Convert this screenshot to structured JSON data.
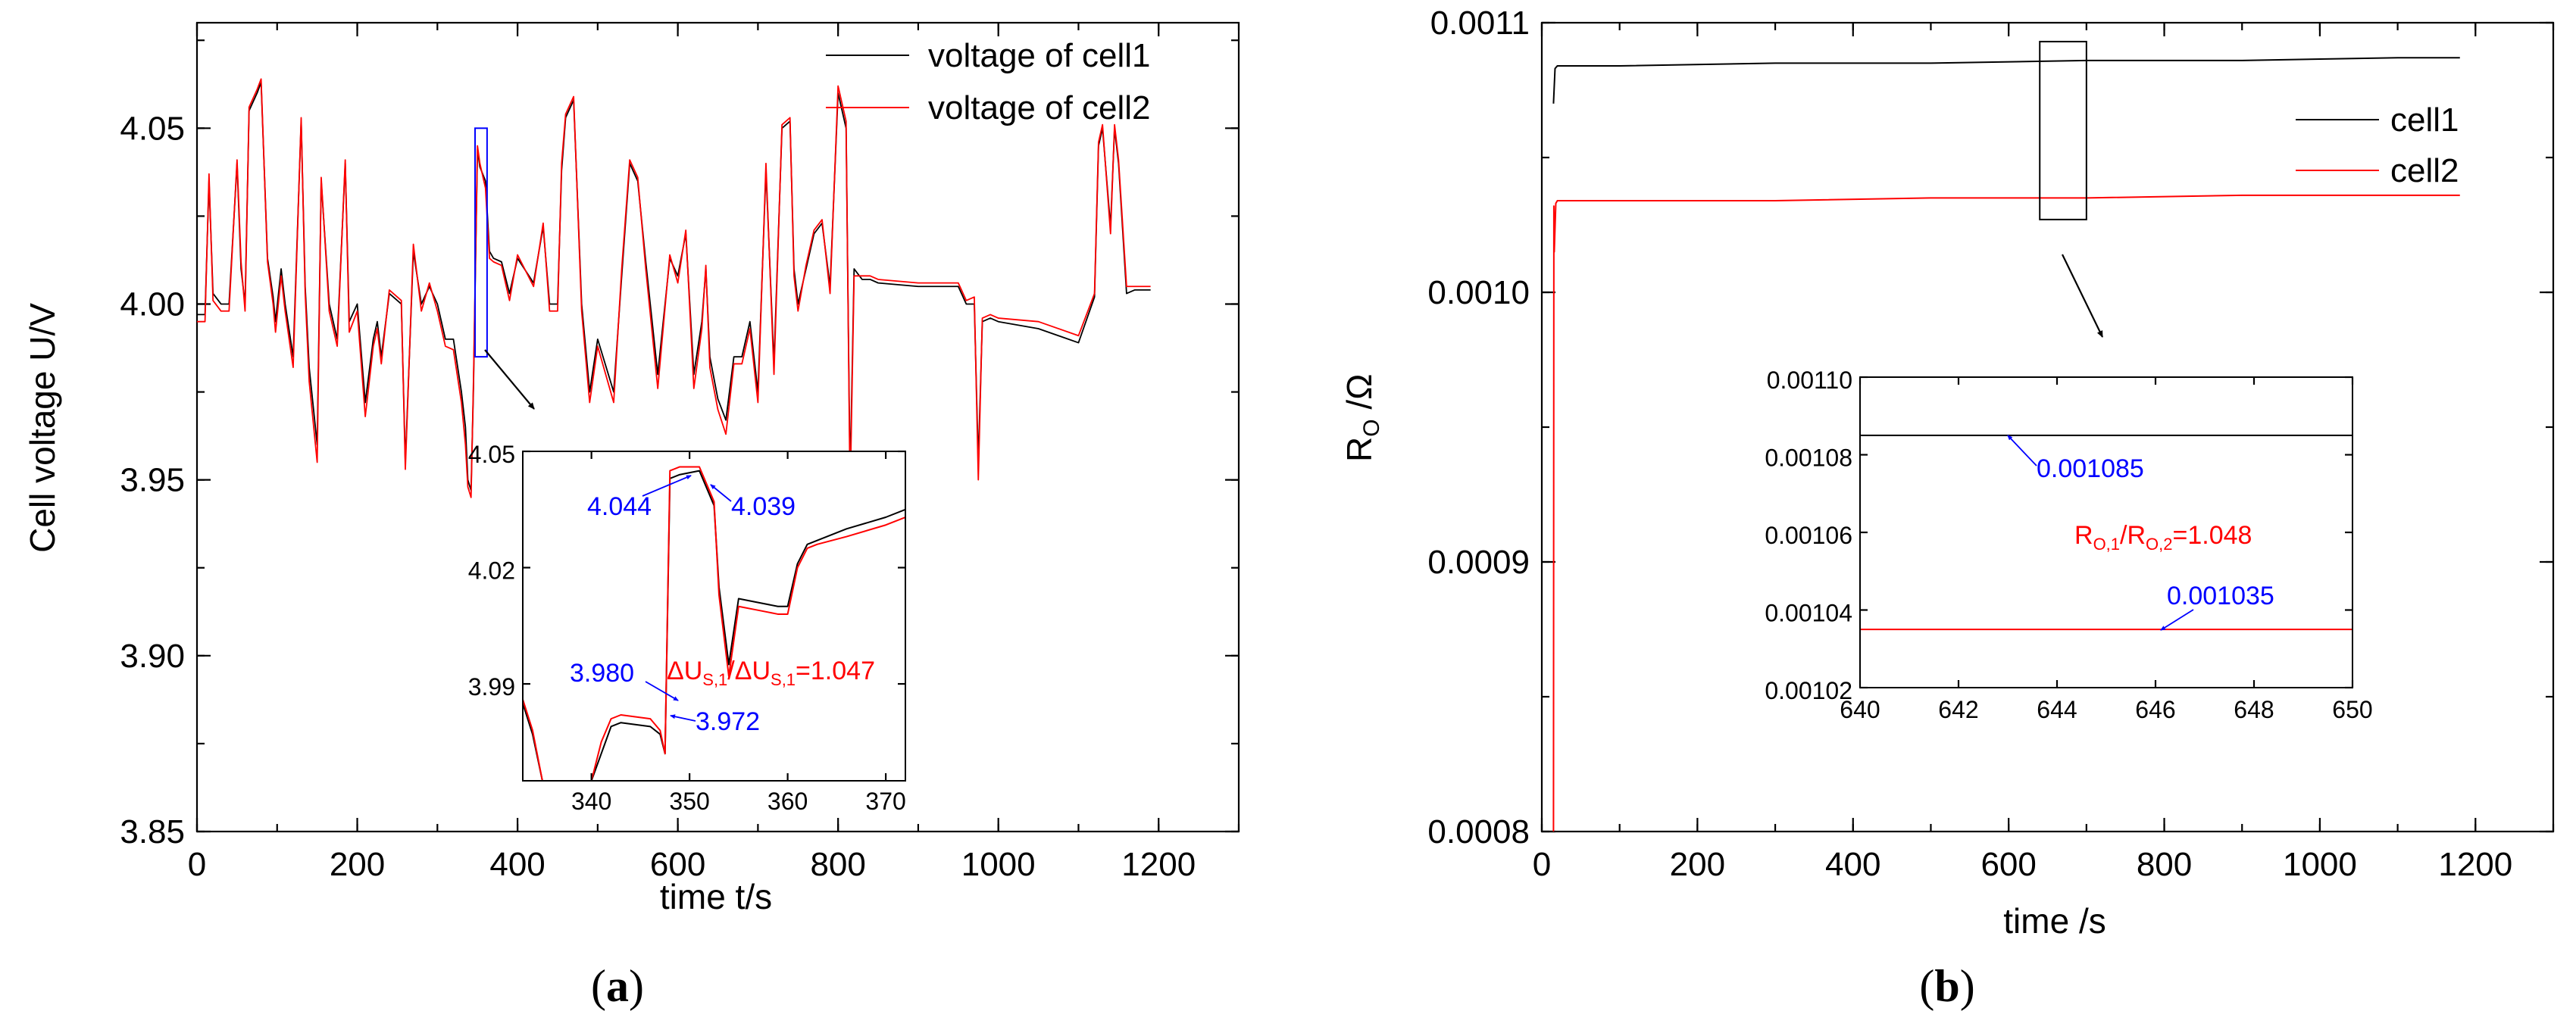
{
  "chart_data": [
    {
      "panel": "a",
      "type": "line",
      "caption": {
        "open": "(",
        "letter": "a",
        "close": ")"
      },
      "xlabel": "time t/s",
      "ylabel": "Cell voltage U/V",
      "xlim": [
        0,
        1300
      ],
      "ylim": [
        3.85,
        4.08
      ],
      "xticks": [
        "0",
        "200",
        "400",
        "600",
        "800",
        "1000",
        "1200"
      ],
      "yticks": [
        "3.85",
        "3.90",
        "3.95",
        "4.00",
        "4.05"
      ],
      "legend": [
        "voltage of cell1",
        "voltage of cell2"
      ],
      "series": [
        {
          "name": "voltage of cell1",
          "color": "#000000",
          "x": [
            0,
            10,
            15,
            20,
            30,
            40,
            50,
            55,
            60,
            65,
            75,
            80,
            88,
            95,
            98,
            105,
            110,
            120,
            130,
            135,
            140,
            150,
            155,
            165,
            175,
            185,
            190,
            200,
            210,
            220,
            225,
            230,
            240,
            255,
            260,
            270,
            280,
            290,
            300,
            310,
            320,
            330,
            335,
            338,
            342,
            345,
            350,
            353,
            360,
            365,
            370,
            380,
            390,
            400,
            420,
            432,
            440,
            450,
            455,
            460,
            470,
            480,
            490,
            500,
            520,
            530,
            540,
            550,
            560,
            575,
            590,
            600,
            610,
            620,
            630,
            635,
            640,
            650,
            660,
            670,
            680,
            690,
            700,
            710,
            720,
            730,
            740,
            745,
            750,
            760,
            770,
            780,
            790,
            800,
            810,
            815,
            820,
            830,
            840,
            850,
            900,
            950,
            960,
            970,
            975,
            980,
            990,
            1000,
            1050,
            1100,
            1120,
            1125,
            1130,
            1140,
            1145,
            1150,
            1160,
            1170,
            1180,
            1190
          ],
          "y": [
            3.997,
            3.997,
            4.035,
            4.003,
            4.0,
            4.0,
            4.04,
            4.01,
            4.0,
            4.055,
            4.06,
            4.063,
            4.013,
            4.002,
            3.995,
            4.01,
            4.0,
            3.985,
            4.052,
            4.005,
            3.982,
            3.96,
            4.035,
            4.0,
            3.99,
            4.04,
            3.995,
            4.0,
            3.972,
            3.99,
            3.995,
            3.985,
            4.003,
            4.0,
            3.955,
            4.015,
            4.0,
            4.005,
            4.0,
            3.99,
            3.99,
            3.975,
            3.965,
            3.95,
            3.947,
            3.976,
            4.044,
            4.039,
            4.035,
            4.015,
            4.013,
            4.012,
            4.003,
            4.013,
            4.006,
            4.022,
            4.0,
            4.0,
            4.038,
            4.053,
            4.058,
            4.0,
            3.975,
            3.99,
            3.975,
            4.008,
            4.04,
            4.035,
            4.012,
            3.98,
            4.013,
            4.008,
            4.02,
            3.98,
            3.995,
            4.01,
            3.985,
            3.973,
            3.967,
            3.985,
            3.985,
            3.995,
            3.975,
            4.038,
            3.983,
            4.05,
            4.052,
            4.01,
            4.0,
            4.01,
            4.02,
            4.023,
            4.005,
            4.06,
            4.05,
            3.95,
            4.01,
            4.007,
            4.007,
            4.006,
            4.005,
            4.005,
            4.0,
            4.0,
            3.955,
            3.995,
            3.996,
            3.995,
            3.993,
            3.989,
            4.002,
            4.045,
            4.05,
            4.022,
            4.05,
            4.04,
            4.003,
            4.004,
            4.004,
            4.004
          ]
        },
        {
          "name": "voltage of cell2",
          "color": "#ff0000",
          "x": [
            0,
            10,
            15,
            20,
            30,
            40,
            50,
            55,
            60,
            65,
            75,
            80,
            88,
            95,
            98,
            105,
            110,
            120,
            130,
            135,
            140,
            150,
            155,
            165,
            175,
            185,
            190,
            200,
            210,
            220,
            225,
            230,
            240,
            255,
            260,
            270,
            280,
            290,
            300,
            310,
            320,
            330,
            335,
            338,
            342,
            345,
            350,
            353,
            360,
            365,
            370,
            380,
            390,
            400,
            420,
            432,
            440,
            450,
            455,
            460,
            470,
            480,
            490,
            500,
            520,
            530,
            540,
            550,
            560,
            575,
            590,
            600,
            610,
            620,
            630,
            635,
            640,
            650,
            660,
            670,
            680,
            690,
            700,
            710,
            720,
            730,
            740,
            745,
            750,
            760,
            770,
            780,
            790,
            800,
            810,
            815,
            820,
            830,
            840,
            850,
            900,
            950,
            960,
            970,
            975,
            980,
            990,
            1000,
            1050,
            1100,
            1120,
            1125,
            1130,
            1140,
            1145,
            1150,
            1160,
            1170,
            1180,
            1190
          ],
          "y": [
            3.995,
            3.995,
            4.037,
            4.001,
            3.998,
            3.998,
            4.041,
            4.012,
            3.998,
            4.056,
            4.061,
            4.064,
            4.012,
            4.0,
            3.992,
            4.008,
            3.998,
            3.982,
            4.053,
            4.003,
            3.978,
            3.955,
            4.036,
            3.998,
            3.988,
            4.041,
            3.992,
            3.998,
            3.968,
            3.988,
            3.993,
            3.983,
            4.004,
            4.001,
            3.953,
            4.017,
            3.998,
            4.006,
            3.998,
            3.988,
            3.987,
            3.972,
            3.96,
            3.948,
            3.945,
            3.978,
            4.045,
            4.04,
            4.033,
            4.013,
            4.012,
            4.011,
            4.001,
            4.014,
            4.005,
            4.023,
            3.998,
            3.998,
            4.04,
            4.054,
            4.059,
            3.998,
            3.972,
            3.988,
            3.972,
            4.01,
            4.041,
            4.036,
            4.01,
            3.976,
            4.014,
            4.006,
            4.021,
            3.976,
            3.993,
            4.011,
            3.982,
            3.97,
            3.963,
            3.983,
            3.983,
            3.993,
            3.972,
            4.04,
            3.98,
            4.051,
            4.053,
            4.008,
            3.998,
            4.011,
            4.021,
            4.024,
            4.003,
            4.062,
            4.052,
            3.945,
            4.008,
            4.008,
            4.008,
            4.007,
            4.006,
            4.006,
            4.001,
            4.002,
            3.95,
            3.996,
            3.997,
            3.996,
            3.995,
            3.991,
            4.003,
            4.046,
            4.051,
            4.02,
            4.051,
            4.041,
            4.005,
            4.005,
            4.005,
            4.005
          ]
        }
      ],
      "highlight_box": {
        "x": [
          347,
          362
        ],
        "y": [
          3.985,
          4.05
        ]
      },
      "inset": {
        "xlim": [
          333,
          372
        ],
        "ylim": [
          3.965,
          4.05
        ],
        "xticks": [
          "340",
          "350",
          "360",
          "370"
        ],
        "yticks": [
          "3.99",
          "4.02",
          "4.05"
        ],
        "series": [
          {
            "name": "cell1",
            "color": "#000000",
            "x": [
              333,
              334,
              335,
              338,
              340,
              341,
              342,
              343,
              346,
              347,
              347.5,
              348,
              349,
              351,
              352,
              352.5,
              353,
              354,
              355,
              357,
              359,
              360,
              361,
              362,
              363,
              366,
              370,
              372
            ],
            "y": [
              3.985,
              3.977,
              3.965,
              3.965,
              3.965,
              3.972,
              3.979,
              3.98,
              3.979,
              3.977,
              3.972,
              4.043,
              4.044,
              4.045,
              4.039,
              4.036,
              4.015,
              3.995,
              4.012,
              4.011,
              4.01,
              4.01,
              4.021,
              4.026,
              4.027,
              4.03,
              4.033,
              4.035
            ]
          },
          {
            "name": "cell2",
            "color": "#ff0000",
            "x": [
              333,
              334,
              335,
              338,
              340,
              341,
              342,
              343,
              346,
              347,
              347.5,
              348,
              349,
              351,
              352,
              352.5,
              353,
              354,
              355,
              357,
              359,
              360,
              361,
              362,
              363,
              366,
              370,
              372
            ],
            "y": [
              3.986,
              3.978,
              3.965,
              3.965,
              3.965,
              3.975,
              3.981,
              3.982,
              3.981,
              3.978,
              3.972,
              4.045,
              4.046,
              4.046,
              4.04,
              4.037,
              4.013,
              3.992,
              4.01,
              4.009,
              4.008,
              4.008,
              4.02,
              4.025,
              4.026,
              4.028,
              4.031,
              4.033
            ]
          }
        ],
        "annotations": [
          {
            "text": "4.044",
            "color": "#0000ff"
          },
          {
            "text": "4.039",
            "color": "#0000ff"
          },
          {
            "text": "3.980",
            "color": "#0000ff"
          },
          {
            "text": "3.972",
            "color": "#0000ff"
          }
        ],
        "ratio": {
          "delta": "ΔU",
          "sub1": "S,1",
          "sep": "/ΔU",
          "sub2": "S,1",
          "value": "=1.047",
          "color": "#ff0000"
        }
      }
    },
    {
      "panel": "b",
      "type": "line",
      "caption": {
        "open": "(",
        "letter": "b",
        "close": ")"
      },
      "xlabel": "time /s",
      "ylabel": {
        "main": "R",
        "sub": "O",
        "unit": " /Ω"
      },
      "xlim": [
        0,
        1300
      ],
      "ylim": [
        0.0008,
        0.0011
      ],
      "xticks": [
        "0",
        "200",
        "400",
        "600",
        "800",
        "1000",
        "1200"
      ],
      "yticks": [
        "0.0008",
        "0.0009",
        "0.0010",
        "0.0011"
      ],
      "legend": [
        "cell1",
        "cell2"
      ],
      "series": [
        {
          "name": "cell1",
          "color": "#000000",
          "x": [
            15,
            17,
            20,
            100,
            300,
            500,
            700,
            900,
            1100,
            1180
          ],
          "y": [
            0.00107,
            0.001083,
            0.001084,
            0.001084,
            0.001085,
            0.001085,
            0.001086,
            0.001086,
            0.001087,
            0.001087
          ]
        },
        {
          "name": "cell2",
          "color": "#ff0000",
          "x": [
            15,
            15.5,
            16,
            18,
            20,
            100,
            300,
            500,
            700,
            900,
            1100,
            1180
          ],
          "y": [
            0.0008,
            0.001032,
            0.001015,
            0.001033,
            0.001034,
            0.001034,
            0.001034,
            0.001035,
            0.001035,
            0.001036,
            0.001036,
            0.001036
          ]
        }
      ],
      "highlight_box": {
        "x": [
          640,
          700
        ],
        "y": [
          0.001027,
          0.001093
        ]
      },
      "inset": {
        "xlim": [
          640,
          650
        ],
        "ylim": [
          0.00102,
          0.0011
        ],
        "xticks": [
          "640",
          "642",
          "644",
          "646",
          "648",
          "650"
        ],
        "yticks": [
          "0.00102",
          "0.00104",
          "0.00106",
          "0.00108",
          "0.00110"
        ],
        "series": [
          {
            "name": "cell1",
            "color": "#000000",
            "x": [
              640,
              650
            ],
            "y": [
              0.001085,
              0.001085
            ]
          },
          {
            "name": "cell2",
            "color": "#ff0000",
            "x": [
              640,
              650
            ],
            "y": [
              0.001035,
              0.001035
            ]
          }
        ],
        "annotations": [
          {
            "text": "0.001085",
            "color": "#0000ff"
          },
          {
            "text": "0.001035",
            "color": "#0000ff"
          }
        ],
        "ratio": {
          "r1": "R",
          "sub1": "O,1",
          "sep": "/R",
          "sub2": "O,2",
          "value": "=1.048",
          "color": "#ff0000"
        }
      }
    }
  ]
}
